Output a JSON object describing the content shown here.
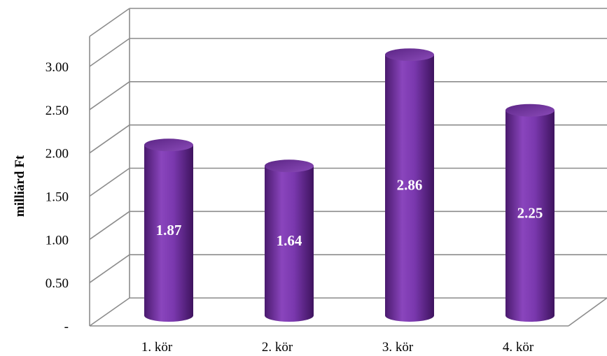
{
  "chart_data": {
    "type": "bar",
    "style": "3d-cylinder",
    "ylabel": "milliárd Ft",
    "xlabel": "",
    "categories": [
      "1. kör",
      "2. kör",
      "3. kör",
      "4. kör"
    ],
    "values": [
      1.87,
      1.64,
      2.86,
      2.25
    ],
    "data_labels": [
      "1.87",
      "1.64",
      "2.86",
      "2.25"
    ],
    "ylim": [
      0,
      3.0
    ],
    "ytick_values": [
      0,
      0.5,
      1.0,
      1.5,
      2.0,
      2.5,
      3.0
    ],
    "ytick_labels": [
      "-",
      "0.50",
      "1.00",
      "1.50",
      "2.00",
      "2.50",
      "3.00"
    ],
    "grid": true,
    "legend": "none",
    "colors": {
      "bar": "#7030a0",
      "bar_dark": "#4a1a6e",
      "bar_light": "#9a5fc8",
      "grid": "#8c8c8c",
      "label": "#ffffff"
    }
  }
}
